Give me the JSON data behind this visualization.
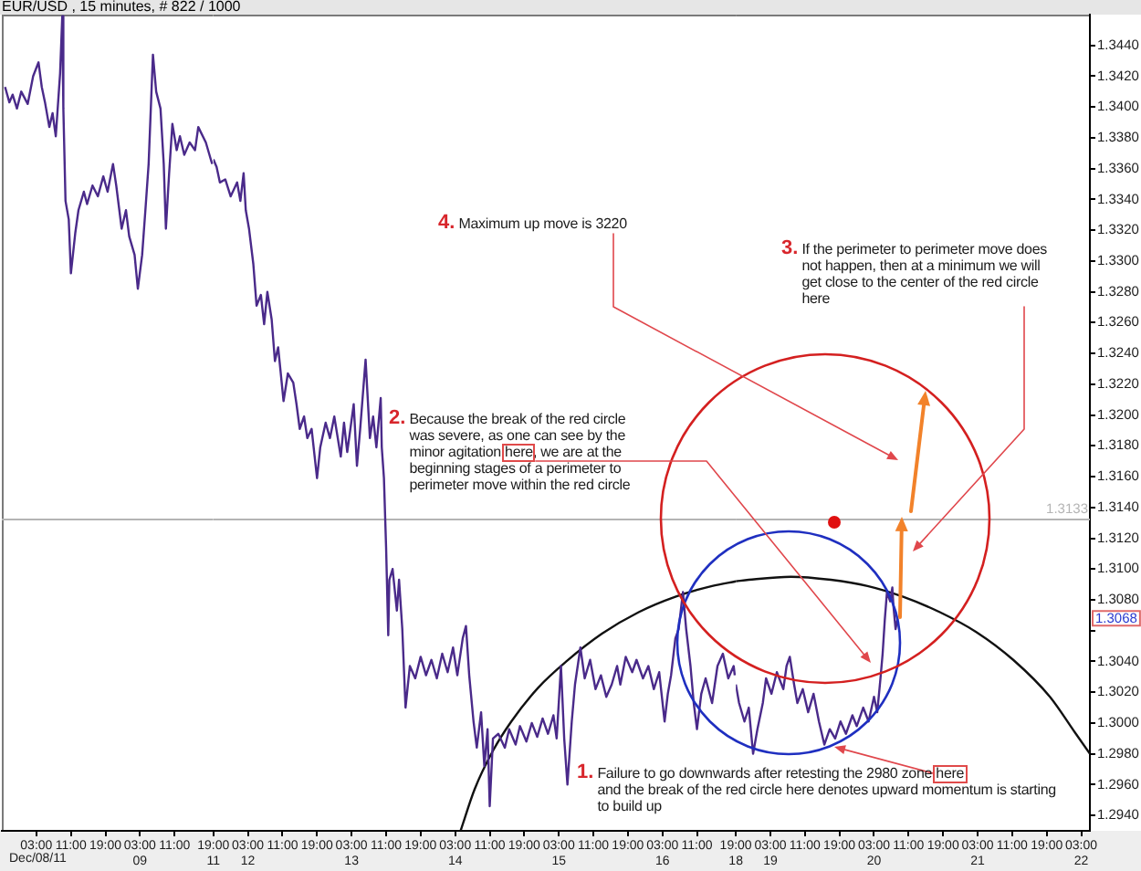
{
  "chart_data": [
    {
      "type": "line",
      "title": "EUR/USD , 15 minutes, # 822 / 1000",
      "x": [
        "--12-07T19:45",
        "--12-07T20:45",
        "--12-07T21:30",
        "--12-07T22:30",
        "--12-07T23:30",
        "--12-08T01:00",
        "--12-08T02:15",
        "--12-08T03:30",
        "--12-08T04:15",
        "--12-08T05:00",
        "--12-08T06:00",
        "--12-08T06:45",
        "--12-08T07:30",
        "--12-08T08:30",
        "--12-08T09:00",
        "--12-08T09:15",
        "--12-08T09:45",
        "--12-08T10:30",
        "--12-08T11:00",
        "--12-08T12:00",
        "--12-08T12:45",
        "--12-08T14:00",
        "--12-08T14:45",
        "--12-08T16:00",
        "--12-08T17:15",
        "--12-08T18:30",
        "--12-08T19:30",
        "--12-08T20:45",
        "--12-08T21:30",
        "--12-08T22:45",
        "--12-08T23:45",
        "--12-09T00:30",
        "--12-09T01:45",
        "--12-09T02:30",
        "--12-09T03:30",
        "--12-09T04:15",
        "--12-09T05:00",
        "--12-09T06:00",
        "--12-09T06:45",
        "--12-09T07:45",
        "--12-09T08:30",
        "--12-09T09:00",
        "--12-09T09:45",
        "--12-09T10:30",
        "--12-09T11:30",
        "--12-09T12:15",
        "--12-09T13:15",
        "--12-09T14:30",
        "--12-09T15:45",
        "--12-09T16:30",
        "--12-09T18:15",
        "--12-09T19:30",
        "--12-09T19:45"
      ],
      "series": [
        {
          "color": "#4a2a8a",
          "values": [
            1.3413,
            1.3403,
            1.3408,
            1.3399,
            1.341,
            1.3402,
            1.342,
            1.3429,
            1.3413,
            1.3403,
            1.3387,
            1.3396,
            1.3381,
            1.3422,
            1.3459,
            1.3399,
            1.3339,
            1.3327,
            1.3292,
            1.3318,
            1.3333,
            1.3345,
            1.3337,
            1.3349,
            1.3342,
            1.3355,
            1.3345,
            1.3363,
            1.3349,
            1.3321,
            1.3333,
            1.3316,
            1.3304,
            1.3282,
            1.3304,
            1.3333,
            1.3363,
            1.3434,
            1.341,
            1.3399,
            1.3363,
            1.3321,
            1.3357,
            1.3389,
            1.3372,
            1.3381,
            1.3369,
            1.3377,
            1.3372,
            1.3387,
            1.3377,
            1.3365,
            1.3363
          ]
        }
      ],
      "xlim": [
        "--12-07T19:00",
        "--12-09T20:00"
      ],
      "xticks": [
        {
          "value": "--12-08T03:00",
          "label": "03:00"
        },
        {
          "value": "--12-08T11:00",
          "label": "11:00"
        },
        {
          "value": "--12-08T19:00",
          "label": "19:00"
        },
        {
          "value": "--12-09T03:00",
          "label": "03:00\n09"
        },
        {
          "value": "--12-09T11:00",
          "label": "11:00"
        }
      ],
      "ylim": [
        1.293,
        1.346
      ],
      "tick_labels": "x",
      "ref_lines": [
        {
          "axis": "y",
          "value": 1.3133,
          "color": "#b4b4b4"
        }
      ],
      "annotations": [
        "Dec/08/11"
      ],
      "grid": false,
      "legend": false,
      "marker": "none",
      "line_style": "solid"
    },
    {
      "type": "line",
      "x": [
        "--12-11T19:00",
        "--12-11T19:45",
        "--12-11T20:30",
        "--12-11T21:45",
        "--12-11T23:00",
        "--12-12T00:30",
        "--12-12T01:15",
        "--12-12T02:00",
        "--12-12T02:30",
        "--12-12T03:15",
        "--12-12T04:15",
        "--12-12T05:00",
        "--12-12T06:00",
        "--12-12T06:45",
        "--12-12T07:30",
        "--12-12T08:30",
        "--12-12T09:15",
        "--12-12T10:00",
        "--12-12T11:15",
        "--12-12T12:15",
        "--12-12T13:30",
        "--12-12T14:15",
        "--12-12T15:00",
        "--12-12T16:00",
        "--12-12T16:45",
        "--12-12T17:45",
        "--12-12T19:00",
        "--12-12T19:45",
        "--12-12T21:00",
        "--12-12T22:00",
        "--12-12T23:00",
        "--12-13T00:30",
        "--12-13T01:15",
        "--12-13T02:00",
        "--12-13T03:30",
        "--12-13T04:15",
        "--12-13T05:00",
        "--12-13T06:15",
        "--12-13T07:15",
        "--12-13T08:00",
        "--12-13T08:45",
        "--12-13T09:45",
        "--12-13T10:00",
        "--12-13T10:30",
        "--12-13T11:00",
        "--12-13T11:30",
        "--12-13T11:45",
        "--12-13T12:30",
        "--12-13T13:30",
        "--12-13T14:00",
        "--12-13T14:45",
        "--12-13T15:30",
        "--12-13T16:30",
        "--12-13T17:45",
        "--12-13T19:00",
        "--12-13T20:15",
        "--12-13T21:30",
        "--12-13T22:45",
        "--12-14T00:00",
        "--12-14T01:15",
        "--12-14T02:30",
        "--12-14T03:30",
        "--12-14T04:45",
        "--12-14T05:30",
        "--12-14T06:15",
        "--12-14T07:15",
        "--12-14T08:00",
        "--12-14T09:00",
        "--12-14T09:45",
        "--12-14T10:30",
        "--12-14T11:00",
        "--12-14T11:45",
        "--12-14T13:00",
        "--12-14T14:30",
        "--12-14T15:30",
        "--12-14T17:00",
        "--12-14T18:00",
        "--12-14T19:30",
        "--12-14T20:45",
        "--12-14T22:00",
        "--12-14T23:15",
        "--12-15T00:30",
        "--12-15T01:45",
        "--12-15T02:30",
        "--12-15T03:30",
        "--12-15T04:15",
        "--12-15T05:00",
        "--12-15T06:00",
        "--12-15T06:45",
        "--12-15T08:00",
        "--12-15T09:00",
        "--12-15T10:15",
        "--12-15T11:30",
        "--12-15T12:45",
        "--12-15T14:00",
        "--12-15T15:15",
        "--12-15T16:30",
        "--12-15T17:15",
        "--12-15T18:30",
        "--12-15T20:00",
        "--12-15T21:00",
        "--12-15T22:30",
        "--12-15T23:45",
        "--12-16T01:00",
        "--12-16T02:15",
        "--12-16T03:30",
        "--12-16T04:15",
        "--12-16T05:00",
        "--12-16T06:00",
        "--12-16T06:45",
        "--12-16T07:45",
        "--12-16T08:30",
        "--12-16T09:30",
        "--12-16T10:15",
        "--12-16T11:00",
        "--12-16T12:00",
        "--12-16T13:00",
        "--12-16T14:30",
        "--12-16T15:45",
        "--12-16T17:00",
        "--12-16T18:15",
        "--12-16T19:30",
        "--12-16T19:45"
      ],
      "series": [
        {
          "color": "#4a2a8a",
          "values": [
            1.3366,
            1.3361,
            1.3351,
            1.3353,
            1.3342,
            1.3351,
            1.3339,
            1.3357,
            1.3333,
            1.3321,
            1.3298,
            1.3271,
            1.3278,
            1.3259,
            1.328,
            1.3262,
            1.3235,
            1.3244,
            1.3209,
            1.3227,
            1.3221,
            1.3207,
            1.3191,
            1.3199,
            1.3185,
            1.3191,
            1.3159,
            1.3179,
            1.3195,
            1.3185,
            1.3199,
            1.3173,
            1.3195,
            1.3176,
            1.3207,
            1.3167,
            1.3191,
            1.3236,
            1.3185,
            1.3199,
            1.3179,
            1.3211,
            1.3179,
            1.3159,
            1.3114,
            1.3057,
            1.3093,
            1.31,
            1.3073,
            1.3093,
            1.3061,
            1.301,
            1.3037,
            1.3029,
            1.3043,
            1.3031,
            1.3041,
            1.3029,
            1.3045,
            1.3033,
            1.3049,
            1.3031,
            1.3055,
            1.3063,
            1.3031,
            1.3001,
            1.2984,
            1.3007,
            1.2972,
            1.2996,
            1.2946,
            1.299,
            1.2993,
            1.2984,
            1.2996,
            1.2986,
            1.2998,
            1.2988,
            1.3,
            1.2991,
            1.3003,
            1.2993,
            1.3005,
            1.299,
            1.3037,
            1.299,
            1.296,
            1.3001,
            1.3025,
            1.3049,
            1.3029,
            1.3041,
            1.3022,
            1.3031,
            1.3017,
            1.3025,
            1.3037,
            1.3025,
            1.3043,
            1.3033,
            1.3041,
            1.3029,
            1.3037,
            1.3022,
            1.3033,
            1.3001,
            1.3019,
            1.3031,
            1.3055,
            1.3061,
            1.3085,
            1.3061,
            1.3037,
            1.3013,
            1.2996,
            1.3019,
            1.3029,
            1.3013,
            1.3037,
            1.3045,
            1.3029,
            1.3037,
            1.3031
          ]
        },
        {
          "type": "line",
          "color": "#111111",
          "x": [
            "--12-14T04:15",
            "--12-14T07:30",
            "--12-14T11:45",
            "--12-14T16:00",
            "--12-14T22:15",
            "--12-15T04:45",
            "--12-15T13:00",
            "--12-15T21:30",
            "--12-16T06:00",
            "--12-16T14:30",
            "--12-16T20:00"
          ],
          "values": [
            1.293,
            1.2957,
            1.2982,
            1.3001,
            1.3023,
            1.304,
            1.3058,
            1.3072,
            1.3082,
            1.3089,
            1.3092
          ]
        }
      ],
      "xlim": [
        "--12-11T19:00",
        "--12-16T20:00"
      ],
      "xticks": [
        {
          "value": "--12-11T19:00",
          "label": "19:00\n11"
        },
        {
          "value": "--12-12T03:00",
          "label": "03:00\n12"
        },
        {
          "value": "--12-12T11:00",
          "label": "11:00"
        },
        {
          "value": "--12-12T19:00",
          "label": "19:00"
        },
        {
          "value": "--12-13T03:00",
          "label": "03:00\n13"
        },
        {
          "value": "--12-13T11:00",
          "label": "11:00"
        },
        {
          "value": "--12-13T19:00",
          "label": "19:00"
        },
        {
          "value": "--12-14T03:00",
          "label": "03:00\n14"
        },
        {
          "value": "--12-14T11:00",
          "label": "11:00"
        },
        {
          "value": "--12-14T19:00",
          "label": "19:00"
        },
        {
          "value": "--12-15T03:00",
          "label": "03:00\n15"
        },
        {
          "value": "--12-15T11:00",
          "label": "11:00"
        },
        {
          "value": "--12-15T19:00",
          "label": "19:00"
        },
        {
          "value": "--12-16T03:00",
          "label": "03:00\n16"
        },
        {
          "value": "--12-16T11:00",
          "label": "11:00"
        }
      ],
      "ylim": [
        1.293,
        1.346
      ],
      "tick_labels": "x",
      "ref_lines": [
        {
          "axis": "y",
          "value": 1.3133,
          "color": "#b4b4b4"
        }
      ],
      "annotations": [
        "4. Maximum up move is 3220",
        "2. Because the break of the red circle\nwas severe, as one can see by the\nminor agitation here, we are at the\nbeginning stages of a perimeter to\nperimeter move within the red circle"
      ],
      "grid": false,
      "legend": false,
      "marker": "none",
      "line_style": "solid"
    },
    {
      "type": "line",
      "x": [
        "--12-18T19:00",
        "--12-18T19:45",
        "--12-18T21:00",
        "--12-18T22:00",
        "--12-18T23:00",
        "--12-19T00:00",
        "--12-19T01:15",
        "--12-19T02:00",
        "--12-19T03:15",
        "--12-19T04:30",
        "--12-19T06:00",
        "--12-19T06:45",
        "--12-19T07:30",
        "--12-19T08:30",
        "--12-19T09:15",
        "--12-19T10:30",
        "--12-19T11:45",
        "--12-19T13:00",
        "--12-19T14:15",
        "--12-19T15:30",
        "--12-19T16:45",
        "--12-19T18:00",
        "--12-19T19:15",
        "--12-19T20:30",
        "--12-19T22:00",
        "--12-19T23:00",
        "--12-20T00:30",
        "--12-20T01:45",
        "--12-20T03:00",
        "--12-20T03:45",
        "--12-20T04:30",
        "--12-20T05:00",
        "--12-20T05:30",
        "--12-20T06:00",
        "--12-20T06:45",
        "--12-20T07:15",
        "--12-20T07:30",
        "--12-20T08:00",
        "--12-20T08:30"
      ],
      "series": [
        {
          "color": "#4a2a8a",
          "values": [
            1.3025,
            1.3013,
            1.3001,
            1.301,
            1.298,
            1.2996,
            1.3013,
            1.3029,
            1.3019,
            1.3033,
            1.3022,
            1.3037,
            1.3043,
            1.3025,
            1.3013,
            1.3022,
            1.3007,
            1.3019,
            1.3001,
            1.2986,
            1.2996,
            1.299,
            1.3001,
            1.2993,
            1.3005,
            1.2998,
            1.301,
            1.3001,
            1.3017,
            1.3007,
            1.3029,
            1.3045,
            1.3067,
            1.3085,
            1.3079,
            1.3088,
            1.3076,
            1.3061,
            1.3068
          ]
        },
        {
          "type": "line",
          "color": "#111111",
          "x": [
            "--12-18T19:00",
            "--12-18T22:00",
            "--12-19T07:45",
            "--12-19T17:00",
            "--12-20T01:30",
            "--12-20T09:45",
            "--12-20T18:15",
            "--12-21T02:45",
            "--12-21T11:15",
            "--12-21T19:45",
            "--12-22T01:30",
            "--12-22T05:00"
          ],
          "values": [
            1.3092,
            1.3093,
            1.3095,
            1.3093,
            1.3089,
            1.3082,
            1.3072,
            1.3059,
            1.3041,
            1.3017,
            1.2994,
            1.298
          ]
        }
      ],
      "xlim": [
        "--12-18T19:00",
        "--12-22T05:00"
      ],
      "xticks": [
        {
          "value": "--12-18T19:00",
          "label": "19:00\n18"
        },
        {
          "value": "--12-19T03:00",
          "label": "03:00\n19"
        },
        {
          "value": "--12-19T11:00",
          "label": "11:00"
        },
        {
          "value": "--12-19T19:00",
          "label": "19:00"
        },
        {
          "value": "--12-20T03:00",
          "label": "03:00\n20"
        },
        {
          "value": "--12-20T11:00",
          "label": "11:00"
        },
        {
          "value": "--12-20T19:00",
          "label": "19:00"
        },
        {
          "value": "--12-21T03:00",
          "label": "03:00\n21"
        },
        {
          "value": "--12-21T11:00",
          "label": "11:00"
        },
        {
          "value": "--12-21T19:00",
          "label": "19:00"
        },
        {
          "value": "--12-22T03:00",
          "label": "03:00\n22"
        }
      ],
      "ylim": [
        1.293,
        1.346
      ],
      "yticks": [
        {
          "value": 1.294,
          "label": "1.2940"
        },
        {
          "value": 1.296,
          "label": "1.2960"
        },
        {
          "value": 1.298,
          "label": "1.2980"
        },
        {
          "value": 1.3,
          "label": "1.3000"
        },
        {
          "value": 1.302,
          "label": "1.3020"
        },
        {
          "value": 1.304,
          "label": "1.3040"
        },
        {
          "value": 1.306,
          "label": null
        },
        {
          "value": 1.308,
          "label": "1.3080"
        },
        {
          "value": 1.31,
          "label": "1.3100"
        },
        {
          "value": 1.312,
          "label": "1.3120"
        },
        {
          "value": 1.314,
          "label": "1.3140"
        },
        {
          "value": 1.316,
          "label": "1.3160"
        },
        {
          "value": 1.318,
          "label": "1.3180"
        },
        {
          "value": 1.32,
          "label": "1.3200"
        },
        {
          "value": 1.322,
          "label": "1.3220"
        },
        {
          "value": 1.324,
          "label": "1.3240"
        },
        {
          "value": 1.326,
          "label": "1.3260"
        },
        {
          "value": 1.328,
          "label": "1.3280"
        },
        {
          "value": 1.33,
          "label": "1.3300"
        },
        {
          "value": 1.332,
          "label": "1.3320"
        },
        {
          "value": 1.334,
          "label": "1.3340"
        },
        {
          "value": 1.336,
          "label": "1.3360"
        },
        {
          "value": 1.338,
          "label": "1.3380"
        },
        {
          "value": 1.34,
          "label": "1.3400"
        },
        {
          "value": 1.342,
          "label": "1.3420"
        },
        {
          "value": 1.344,
          "label": "1.3440"
        }
      ],
      "ref_lines": [
        {
          "axis": "y",
          "value": 1.3133,
          "label": "1.3133",
          "color": "#b4b4b4"
        }
      ],
      "annotations": [
        "3. If the perimeter to perimeter move does\nnot happen, then at a minimum we will\nget close to the center of the red circle\nhere",
        "1. Failure to go downwards after retesting the 2980 zone here\nand the break of the red circle here denotes upward momentum is starting\nto build up",
        {
          "text": "1.3068",
          "y": 1.3068
        }
      ],
      "grid": false,
      "legend": false,
      "marker": "none",
      "line_style": "solid"
    }
  ]
}
